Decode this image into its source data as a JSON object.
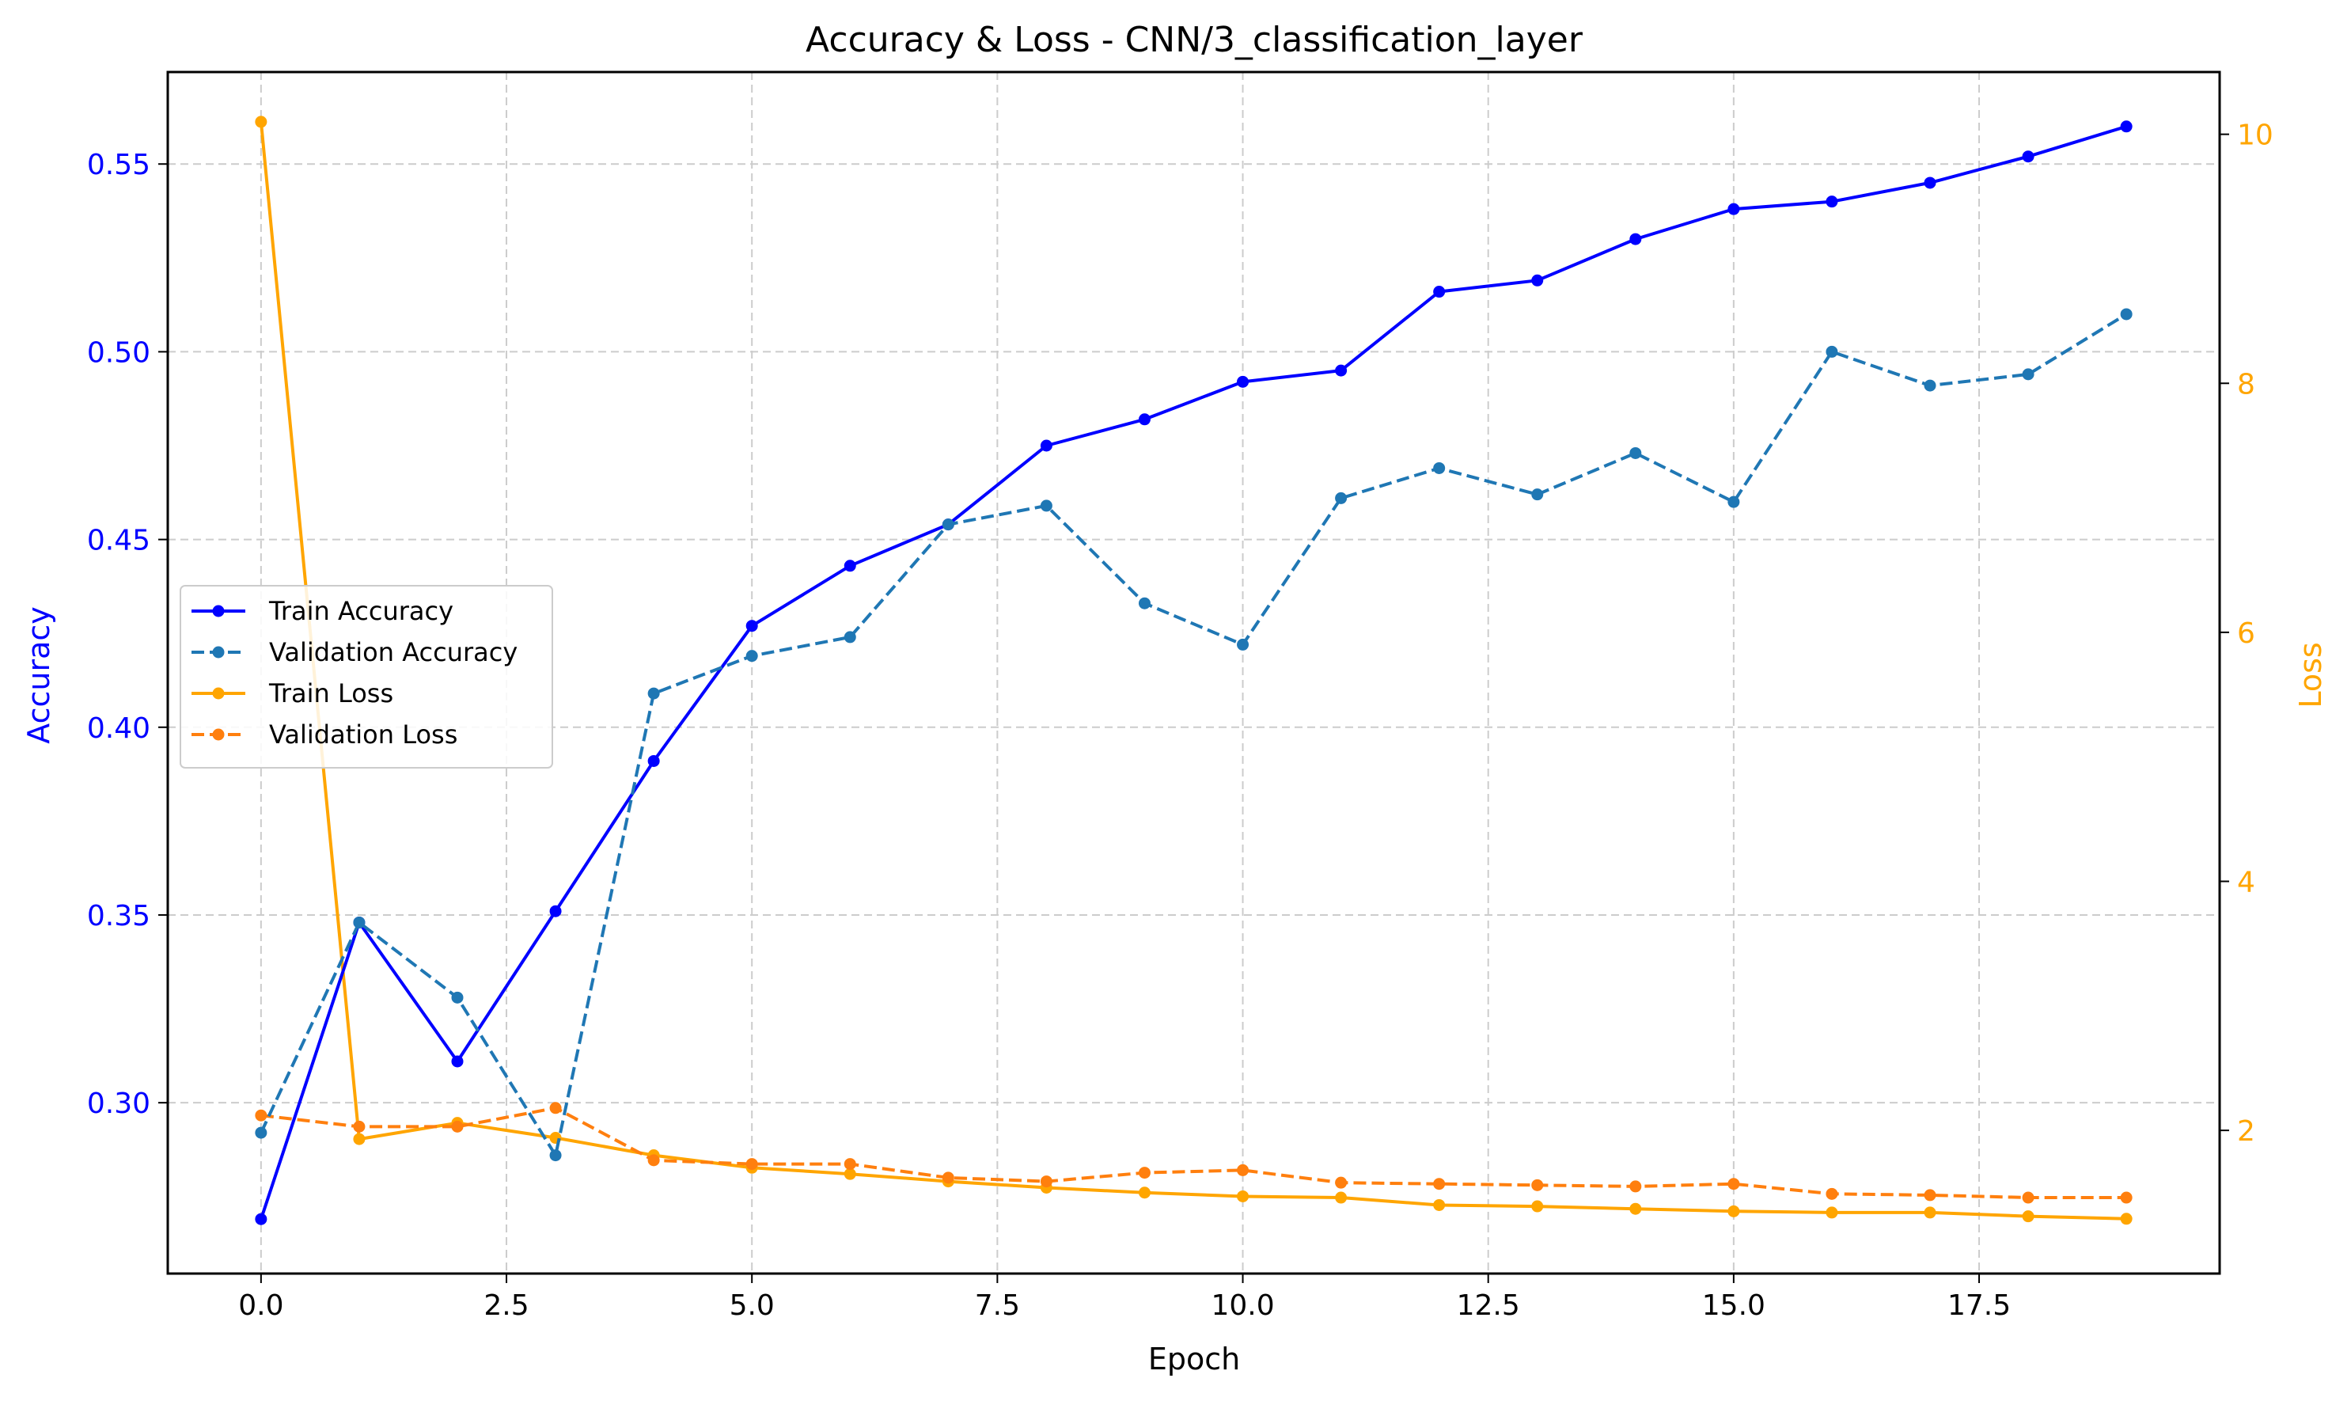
{
  "chart_data": {
    "type": "line",
    "title": "Accuracy & Loss - CNN/3_classification_layer",
    "xlabel": "Epoch",
    "ylabel_left": "Accuracy",
    "ylabel_right": "Loss",
    "x": [
      0,
      1,
      2,
      3,
      4,
      5,
      6,
      7,
      8,
      9,
      10,
      11,
      12,
      13,
      14,
      15,
      16,
      17,
      18,
      19
    ],
    "xlim": [
      -0.95,
      19.95
    ],
    "ylim_left": [
      0.2545,
      0.5745
    ],
    "ylim_right": [
      0.85,
      10.5
    ],
    "xticks": [
      0.0,
      2.5,
      5.0,
      7.5,
      10.0,
      12.5,
      15.0,
      17.5
    ],
    "xtick_labels": [
      "0.0",
      "2.5",
      "5.0",
      "7.5",
      "10.0",
      "12.5",
      "15.0",
      "17.5"
    ],
    "yticks_left": [
      0.3,
      0.35,
      0.4,
      0.45,
      0.5,
      0.55
    ],
    "ytick_labels_left": [
      "0.30",
      "0.35",
      "0.40",
      "0.45",
      "0.50",
      "0.55"
    ],
    "yticks_right": [
      2,
      4,
      6,
      8,
      10
    ],
    "ytick_labels_right": [
      "2",
      "4",
      "6",
      "8",
      "10"
    ],
    "grid": true,
    "legend_position": "center-left",
    "colors": {
      "left_axis": "#0000ff",
      "right_axis": "#ffa500",
      "grid": "#cccccc"
    },
    "series": [
      {
        "name": "Train Accuracy",
        "axis": "left",
        "color": "#0000ff",
        "dashed": false,
        "values": [
          0.269,
          0.348,
          0.311,
          0.351,
          0.391,
          0.427,
          0.443,
          0.454,
          0.475,
          0.482,
          0.492,
          0.495,
          0.516,
          0.519,
          0.53,
          0.538,
          0.54,
          0.545,
          0.552,
          0.56
        ]
      },
      {
        "name": "Validation Accuracy",
        "axis": "left",
        "color": "#1f77b4",
        "dashed": true,
        "values": [
          0.292,
          0.348,
          0.328,
          0.286,
          0.409,
          0.419,
          0.424,
          0.454,
          0.459,
          0.433,
          0.422,
          0.461,
          0.469,
          0.462,
          0.473,
          0.46,
          0.5,
          0.491,
          0.494,
          0.51
        ]
      },
      {
        "name": "Train Loss",
        "axis": "right",
        "color": "#ffa500",
        "dashed": false,
        "values": [
          10.1,
          1.93,
          2.06,
          1.94,
          1.8,
          1.7,
          1.65,
          1.59,
          1.54,
          1.5,
          1.47,
          1.46,
          1.4,
          1.39,
          1.37,
          1.35,
          1.34,
          1.34,
          1.31,
          1.29
        ]
      },
      {
        "name": "Validation Loss",
        "axis": "right",
        "color": "#ff7f0e",
        "dashed": true,
        "values": [
          2.12,
          2.03,
          2.03,
          2.18,
          1.76,
          1.73,
          1.73,
          1.62,
          1.59,
          1.66,
          1.68,
          1.58,
          1.57,
          1.56,
          1.55,
          1.57,
          1.49,
          1.48,
          1.46,
          1.46
        ]
      }
    ]
  }
}
